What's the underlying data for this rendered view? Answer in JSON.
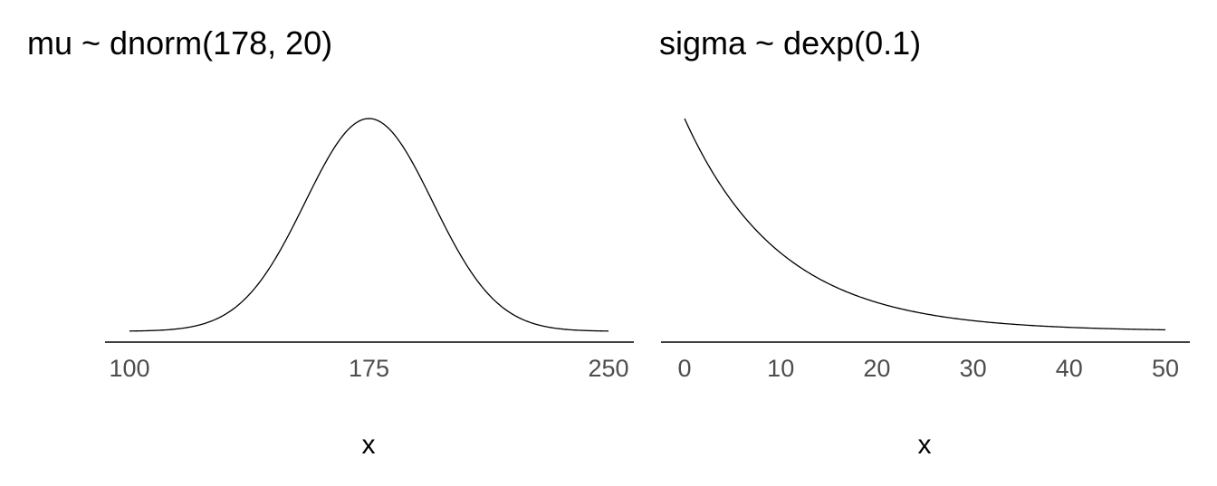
{
  "chart_data": [
    {
      "type": "line",
      "title": "mu ~ dnorm(178, 20)",
      "xlabel": "x",
      "ylabel": "",
      "distribution": {
        "family": "normal",
        "mean": 178,
        "sd": 20
      },
      "xlim": [
        100,
        250
      ],
      "x_ticks": [
        100,
        175,
        250
      ],
      "y_axis_shown": false,
      "grid": false,
      "series": [
        {
          "x": [
            103,
            115,
            125,
            135,
            145,
            155,
            165,
            170,
            178,
            185,
            195,
            205,
            215,
            225,
            235,
            245,
            253
          ],
          "values": [
            0.00018,
            0.00142,
            0.00593,
            0.01979,
            0.05262,
            0.1102,
            0.1816,
            0.2213,
            0.25,
            0.2274,
            0.1722,
            0.1037,
            0.049,
            0.0182,
            0.0053,
            0.0012,
            0.00018
          ]
        }
      ]
    },
    {
      "type": "line",
      "title": "sigma ~ dexp(0.1)",
      "xlabel": "x",
      "ylabel": "",
      "distribution": {
        "family": "exponential",
        "rate": 0.1
      },
      "xlim": [
        0,
        50
      ],
      "x_ticks": [
        0,
        10,
        20,
        30,
        40,
        50
      ],
      "y_axis_shown": false,
      "grid": false,
      "series": [
        {
          "x": [
            0,
            2.5,
            5,
            7.5,
            10,
            15,
            20,
            25,
            30,
            35,
            40,
            45,
            50
          ],
          "values": [
            0.1,
            0.0779,
            0.0607,
            0.0472,
            0.0368,
            0.0223,
            0.0135,
            0.0082,
            0.005,
            0.003,
            0.0018,
            0.0011,
            0.00067
          ]
        }
      ]
    }
  ]
}
